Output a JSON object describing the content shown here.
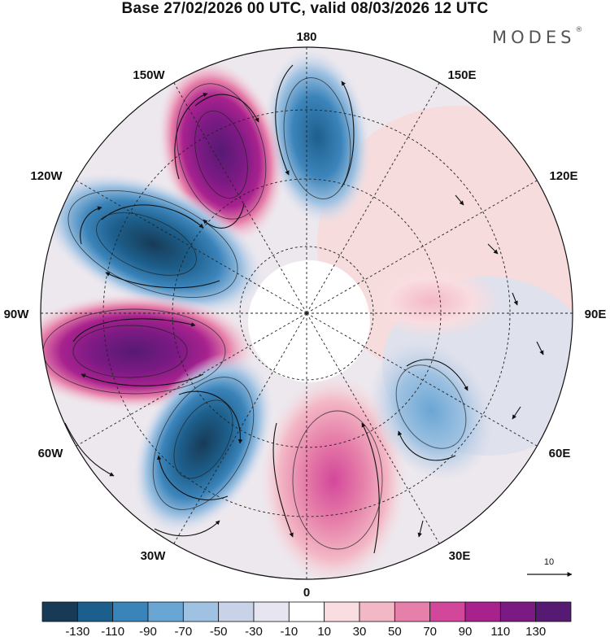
{
  "title": "Base 27/02/2026 00 UTC, valid 08/03/2026 12 UTC",
  "brand": "MODES",
  "brand_mark": "®",
  "longitude_labels": {
    "n180": "180",
    "w150": "150W",
    "e150": "150E",
    "w120": "120W",
    "e120": "120E",
    "w90": "90W",
    "e90": "90E",
    "w60": "60W",
    "e60": "60E",
    "w30": "30W",
    "e30": "30E",
    "s0": "0"
  },
  "vector_reference": "10",
  "colorbar": {
    "colors": [
      "#173b57",
      "#1d5f8c",
      "#3b84ba",
      "#6aa6d3",
      "#9fc2e2",
      "#c8d3e8",
      "#e6e5f0",
      "#ffffff",
      "#f9dde0",
      "#f3b8c6",
      "#e67fa9",
      "#d3479a",
      "#a8228e",
      "#7c1a84",
      "#561a73"
    ],
    "ticks": [
      "-130",
      "-110",
      "-90",
      "-70",
      "-50",
      "-30",
      "-10",
      "10",
      "30",
      "50",
      "70",
      "90",
      "110",
      "130"
    ]
  },
  "anomaly_field": {
    "type": "polar-stereographic height anomaly",
    "units": "contour intervals",
    "centers": [
      {
        "region": "North Pacific / 180",
        "sign": "negative",
        "peak": -70
      },
      {
        "region": "Gulf of Alaska / 150W",
        "sign": "positive",
        "peak": 110
      },
      {
        "region": "Canada / 120W",
        "sign": "negative",
        "peak": -130
      },
      {
        "region": "Eastern North America / 90W",
        "sign": "positive",
        "peak": 130
      },
      {
        "region": "North Atlantic / 60W",
        "sign": "negative",
        "peak": -130
      },
      {
        "region": "Europe / 10E",
        "sign": "positive",
        "peak": 70
      },
      {
        "region": "Western Siberia / 60E",
        "sign": "negative",
        "peak": -50
      },
      {
        "region": "Central Asia / 90E",
        "sign": "positive",
        "peak": 30
      }
    ]
  }
}
